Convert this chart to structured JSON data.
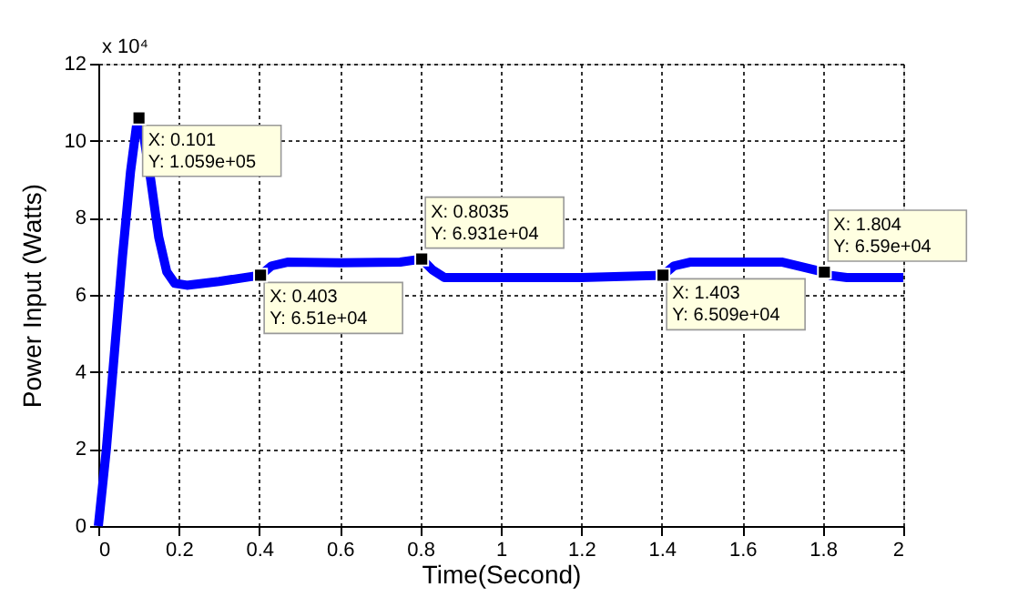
{
  "chart_data": {
    "type": "line",
    "xlabel": "Time(Second)",
    "ylabel": "Power Input (Watts)",
    "x": [
      0,
      0.02,
      0.04,
      0.06,
      0.08,
      0.095,
      0.101,
      0.11,
      0.13,
      0.15,
      0.17,
      0.19,
      0.22,
      0.3,
      0.403,
      0.43,
      0.47,
      0.6,
      0.75,
      0.8035,
      0.83,
      0.86,
      1.0,
      1.2,
      1.403,
      1.43,
      1.47,
      1.7,
      1.804,
      1.82,
      1.86,
      2.0
    ],
    "series": [
      {
        "color": "#0000ff",
        "values": [
          0,
          2.0,
          4.5,
          7.0,
          9.2,
          10.4,
          10.59,
          10.3,
          9.0,
          7.5,
          6.6,
          6.3,
          6.25,
          6.35,
          6.51,
          6.75,
          6.85,
          6.83,
          6.85,
          6.93,
          6.65,
          6.45,
          6.45,
          6.45,
          6.51,
          6.75,
          6.85,
          6.85,
          6.59,
          6.5,
          6.45,
          6.45
        ]
      }
    ],
    "xlim": [
      0,
      2
    ],
    "xticks": [
      0,
      0.2,
      0.4,
      0.6,
      0.8,
      1,
      1.2,
      1.4,
      1.6,
      1.8,
      2
    ],
    "ylim": [
      0,
      12
    ],
    "yticks": [
      0,
      2,
      4,
      6,
      8,
      10,
      12
    ],
    "grid": true,
    "marker": "none",
    "line_style": "solid",
    "annotations": [
      "x 10⁴",
      {
        "text": "X: 0.101\nY: 1.059e+05",
        "x": 0.101,
        "y": 10.59
      },
      {
        "text": "X: 0.403\nY: 6.51e+04",
        "x": 0.403,
        "y": 6.51
      },
      {
        "text": "X: 0.8035\nY: 6.931e+04",
        "x": 0.8035,
        "y": 6.93
      },
      {
        "text": "X: 1.403\nY: 6.509e+04",
        "x": 1.403,
        "y": 6.51
      },
      {
        "text": "X: 1.804\nY: 6.59e+04",
        "x": 1.804,
        "y": 6.59
      }
    ]
  }
}
